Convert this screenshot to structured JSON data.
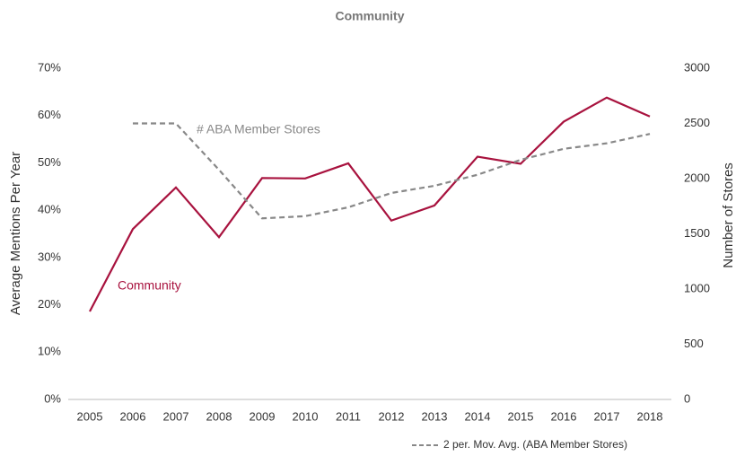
{
  "chart_data": {
    "type": "line",
    "title": "Community",
    "y_label": "Average Mentions Per Year",
    "y2_label": "Number of Stores",
    "categories": [
      "2005",
      "2006",
      "2007",
      "2008",
      "2009",
      "2010",
      "2011",
      "2012",
      "2013",
      "2014",
      "2015",
      "2016",
      "2017",
      "2018"
    ],
    "series": [
      {
        "name": "Community",
        "color": "#a8123e",
        "dash": false,
        "values": [
          18.6,
          36,
          44.8,
          34.3,
          46.8,
          46.7,
          49.9,
          37.8,
          41,
          51.3,
          49.8,
          58.7,
          63.8,
          59.8
        ]
      },
      {
        "name": "2 per. Mov. Avg. (ABA Member Stores)",
        "color": "#888888",
        "dash": true,
        "axis": "y2",
        "values": [
          null,
          2500,
          2500,
          2080,
          1640,
          1660,
          1740,
          1870,
          1935,
          2035,
          2170,
          2270,
          2320,
          2405
        ]
      }
    ],
    "annotations": [
      "# ABA Member Stores"
    ],
    "ylim": [
      0,
      70
    ],
    "yticks": [
      {
        "value": 0,
        "label": "0%"
      },
      {
        "value": 10,
        "label": "10%"
      },
      {
        "value": 20,
        "label": "20%"
      },
      {
        "value": 30,
        "label": "30%"
      },
      {
        "value": 40,
        "label": "40%"
      },
      {
        "value": 50,
        "label": "50%"
      },
      {
        "value": 60,
        "label": "60%"
      },
      {
        "value": 70,
        "label": "70%"
      }
    ],
    "y2lim": [
      0,
      3000
    ],
    "y2ticks": [
      0,
      500,
      1000,
      1500,
      2000,
      2500,
      3000
    ],
    "grid": false,
    "legend": "bottom-right"
  }
}
